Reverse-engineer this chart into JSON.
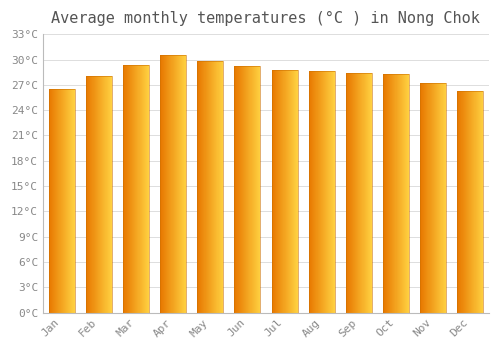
{
  "title": "Average monthly temperatures (°C ) in Nong Chok",
  "months": [
    "Jan",
    "Feb",
    "Mar",
    "Apr",
    "May",
    "Jun",
    "Jul",
    "Aug",
    "Sep",
    "Oct",
    "Nov",
    "Dec"
  ],
  "temperatures": [
    26.5,
    28.0,
    29.3,
    30.5,
    29.8,
    29.2,
    28.8,
    28.6,
    28.4,
    28.3,
    27.2,
    26.3
  ],
  "bar_color_left": "#E87800",
  "bar_color_right": "#FFD040",
  "ylim": [
    0,
    33
  ],
  "yticks": [
    0,
    3,
    6,
    9,
    12,
    15,
    18,
    21,
    24,
    27,
    30,
    33
  ],
  "ytick_labels": [
    "0°C",
    "3°C",
    "6°C",
    "9°C",
    "12°C",
    "15°C",
    "18°C",
    "21°C",
    "24°C",
    "27°C",
    "30°C",
    "33°C"
  ],
  "background_color": "#FFFFFF",
  "grid_color": "#DDDDDD",
  "title_fontsize": 11,
  "tick_fontsize": 8,
  "font_family": "monospace",
  "bar_width": 0.7,
  "n_gradient_steps": 50
}
